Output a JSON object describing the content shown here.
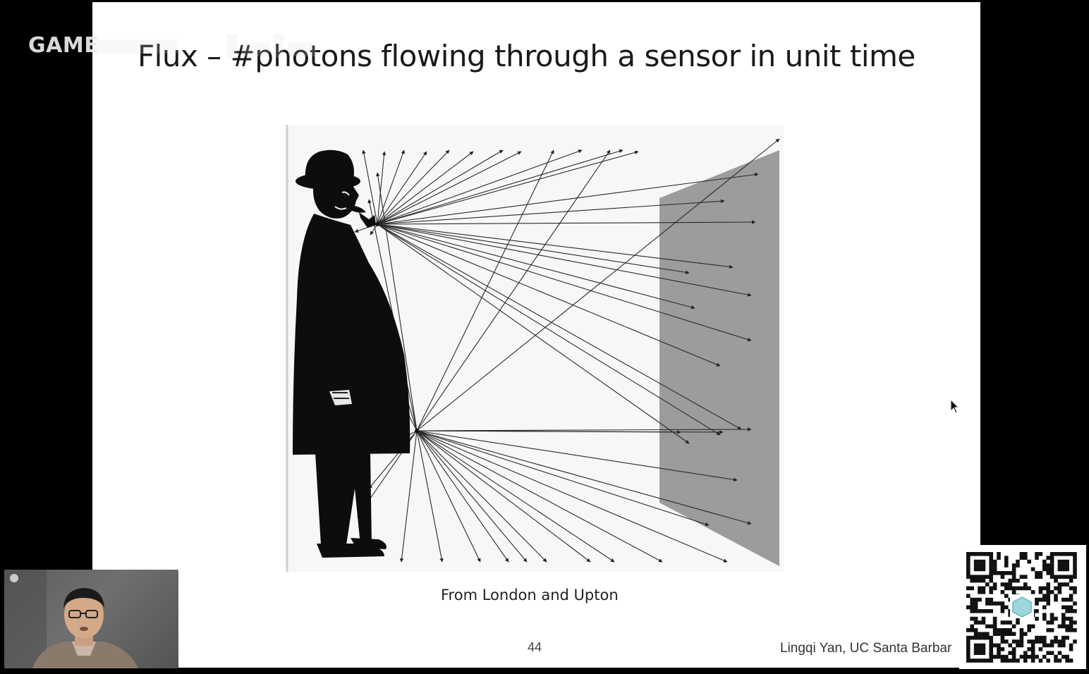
{
  "overlay": {
    "watermark_text": "GAME"
  },
  "slide": {
    "title": "Flux – #photons flowing through a sensor in unit time",
    "caption": "From London and Upton",
    "page_number": "44",
    "author": "Lingqi Yan, UC Santa Barbar"
  },
  "colors": {
    "background": "#000000",
    "slide": "#ffffff",
    "sensor_panel": "#9c9c9c",
    "figure_ink": "#111111"
  },
  "icons": {
    "cursor": "mouse-pointer-icon",
    "qr": "qr-code-icon"
  }
}
